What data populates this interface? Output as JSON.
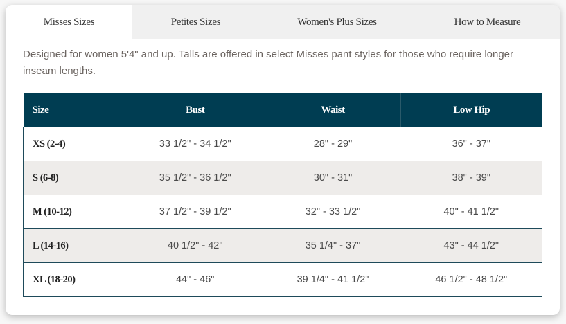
{
  "tabs": [
    {
      "label": "Misses Sizes",
      "active": true
    },
    {
      "label": "Petites Sizes",
      "active": false
    },
    {
      "label": "Women's Plus Sizes",
      "active": false
    },
    {
      "label": "How to Measure",
      "active": false
    }
  ],
  "description": "Designed for women 5'4\" and up. Talls are offered in select Misses pant styles for those who require longer inseam lengths.",
  "table": {
    "headers": [
      "Size",
      "Bust",
      "Waist",
      "Low Hip"
    ],
    "rows": [
      [
        "XS (2-4)",
        "33 1/2\" - 34 1/2\"",
        "28\" - 29\"",
        "36\" - 37\""
      ],
      [
        "S (6-8)",
        "35 1/2\" - 36 1/2\"",
        "30\" - 31\"",
        "38\" - 39\""
      ],
      [
        "M (10-12)",
        "37 1/2\" - 39 1/2\"",
        "32\" - 33 1/2\"",
        "40\" - 41 1/2\""
      ],
      [
        "L (14-16)",
        "40 1/2\" - 42\"",
        "35 1/4\" - 37\"",
        "43\" - 44 1/2\""
      ],
      [
        "XL (18-20)",
        "44\" - 46\"",
        "39 1/4\" - 41 1/2\"",
        "46 1/2\" - 48 1/2\""
      ]
    ]
  },
  "colors": {
    "header_bg": "#003d52",
    "alt_row": "#eeecea",
    "tab_bg": "#f0f0f0"
  }
}
